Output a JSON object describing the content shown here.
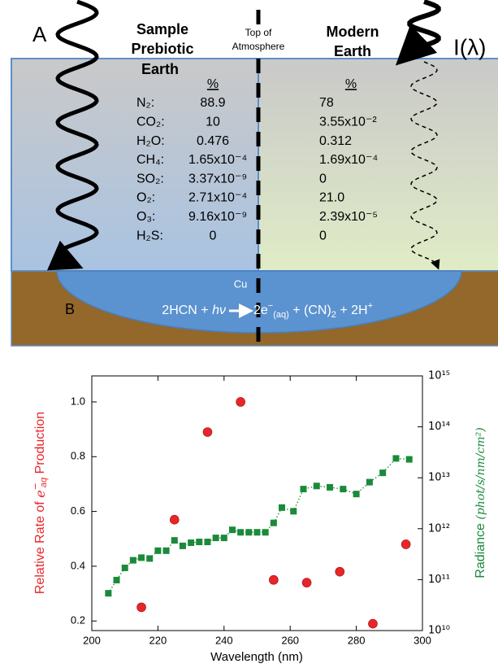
{
  "panel_a": {
    "label": "A",
    "left_title": [
      "Sample",
      "Prebiotic",
      "Earth"
    ],
    "boundary_label": [
      "Top of",
      "Atmosphere"
    ],
    "right_title": [
      "Modern",
      "Earth"
    ],
    "intensity_label": "I(λ)",
    "table": {
      "header": [
        "%",
        "%"
      ],
      "rows": [
        [
          "N₂:",
          "88.9",
          "78"
        ],
        [
          "CO₂:",
          "10",
          "3.55x10⁻²"
        ],
        [
          "H₂O:",
          "0.476",
          "0.312"
        ],
        [
          "CH₄:",
          "1.65x10⁻⁴",
          "1.69x10⁻⁴"
        ],
        [
          "SO₂:",
          "3.37x10⁻⁹",
          "0"
        ],
        [
          "O₂:",
          "2.71x10⁻⁴",
          "21.0"
        ],
        [
          "O₃:",
          "9.16x10⁻⁹",
          "2.39x10⁻⁵"
        ],
        [
          "H₂S:",
          "0",
          "0"
        ]
      ]
    },
    "catalyst": "Cu",
    "reaction": {
      "lhs": "2HCN + ",
      "photon": "hν",
      "product": "2e",
      "charge": "−",
      "phase": "(aq)",
      "mid": " + (CN)",
      "sub": "2",
      "end": " + 2H",
      "proton_charge": "+"
    }
  },
  "chart_data": {
    "type": "combo",
    "panel_label": "B",
    "x_label": "Wavelength (nm)",
    "y_label": {
      "text": "Relative Rate of ",
      "symbol": "e",
      "sup": "−",
      "sub": "aq",
      "rest": " Production"
    },
    "y2_label": {
      "text": "Radiance ",
      "units": "(phot/s/nm/cm²)"
    },
    "xlim": [
      200,
      300
    ],
    "xticks": [
      200,
      220,
      240,
      260,
      280,
      300
    ],
    "ylim": [
      0.165,
      1.095
    ],
    "yticks": [
      0.2,
      0.4,
      0.6,
      0.8,
      {
        "value": 1.0,
        "label": "1.0"
      }
    ],
    "y2lim": [
      10000000000.0,
      1000000000000000.0
    ],
    "y2log": true,
    "y2ticks": [
      {
        "value": 10000000000.0,
        "label": "10¹⁰"
      },
      {
        "value": 100000000000.0,
        "label": "10¹¹"
      },
      {
        "value": 1000000000000.0,
        "label": "10¹²"
      },
      {
        "value": 10000000000000.0,
        "label": "10¹³"
      },
      {
        "value": 100000000000000.0,
        "label": "10¹⁴"
      },
      {
        "value": 1000000000000000.0,
        "label": "10¹⁵"
      }
    ],
    "grid": false,
    "series": [
      {
        "color": "#e8262a",
        "marker": "circle",
        "axis": "y",
        "x": [
          215,
          225,
          235,
          245,
          255,
          265,
          275,
          285,
          295
        ],
        "values": [
          0.25,
          0.57,
          0.89,
          1.0,
          0.35,
          0.34,
          0.38,
          0.19,
          0.48
        ]
      },
      {
        "color": "#1a8a3a",
        "marker": "square",
        "axis": "y2",
        "line": "dotted",
        "x": [
          205,
          207.5,
          210,
          212.5,
          215,
          217.5,
          220,
          222.5,
          225,
          227.5,
          230,
          232.5,
          235,
          237.5,
          240,
          242.5,
          245,
          247.5,
          250,
          252.5,
          255,
          257.5,
          261,
          264,
          268,
          272,
          276,
          280,
          284,
          288,
          292,
          296
        ],
        "values": [
          54000000000.0,
          98000000000.0,
          170000000000.0,
          240000000000.0,
          270000000000.0,
          260000000000.0,
          370000000000.0,
          370000000000.0,
          590000000000.0,
          460000000000.0,
          530000000000.0,
          550000000000.0,
          550000000000.0,
          660000000000.0,
          660000000000.0,
          950000000000.0,
          850000000000.0,
          850000000000.0,
          850000000000.0,
          850000000000.0,
          1300000000000.0,
          2600000000000.0,
          2200000000000.0,
          6000000000000.0,
          6900000000000.0,
          6500000000000.0,
          6000000000000.0,
          4800000000000.0,
          8200000000000.0,
          12500000000000.0,
          24000000000000.0,
          23000000000000.0
        ]
      }
    ]
  }
}
